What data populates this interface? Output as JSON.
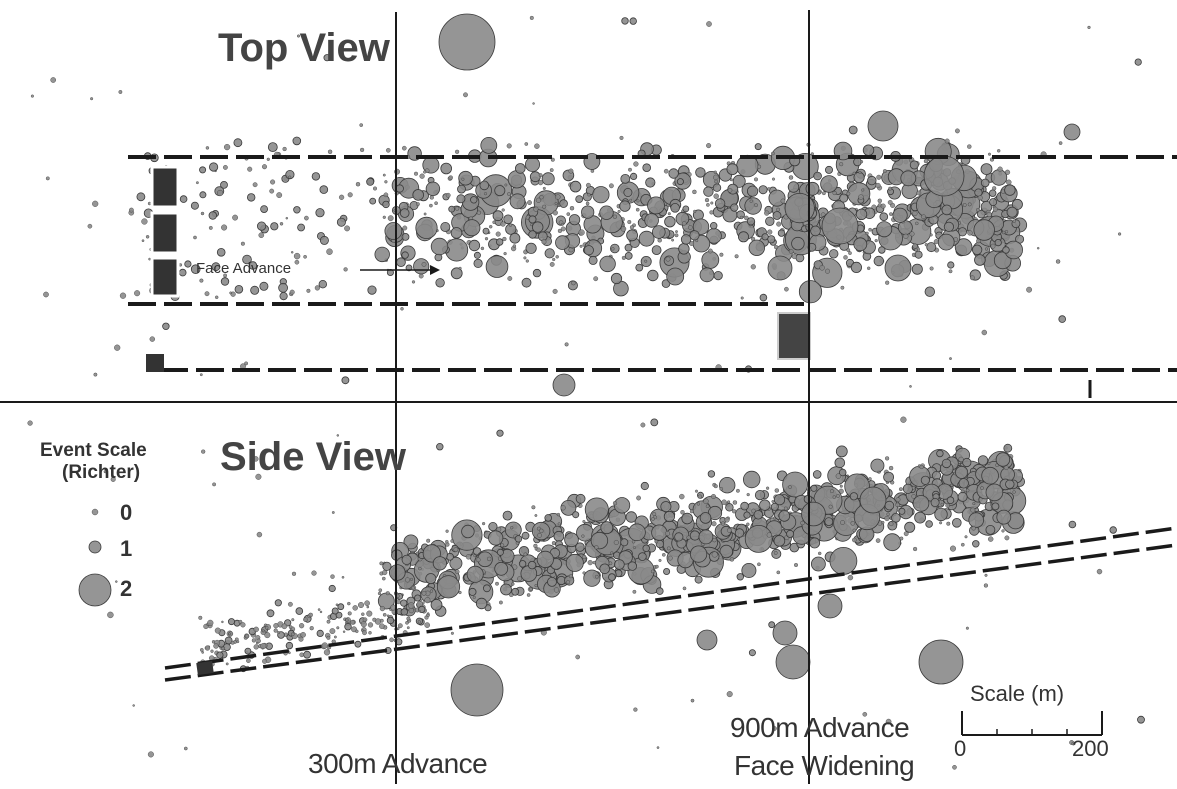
{
  "top_view": {
    "title": "Top View",
    "face_advance_label": "Face Advance"
  },
  "side_view": {
    "title": "Side View"
  },
  "legend": {
    "title_line1": "Event Scale",
    "title_line2": "(Richter)",
    "levels": [
      "0",
      "1",
      "2"
    ]
  },
  "markers": {
    "advance_300": "300m Advance",
    "advance_900": "900m Advance",
    "face_widening": "Face Widening"
  },
  "scale_bar": {
    "title": "Scale (m)",
    "min": "0",
    "max": "200"
  },
  "colors": {
    "event_fill": "#8a8a8a",
    "event_stroke": "#3a3a3a",
    "line": "#1a1a1a",
    "text": "#333333"
  }
}
